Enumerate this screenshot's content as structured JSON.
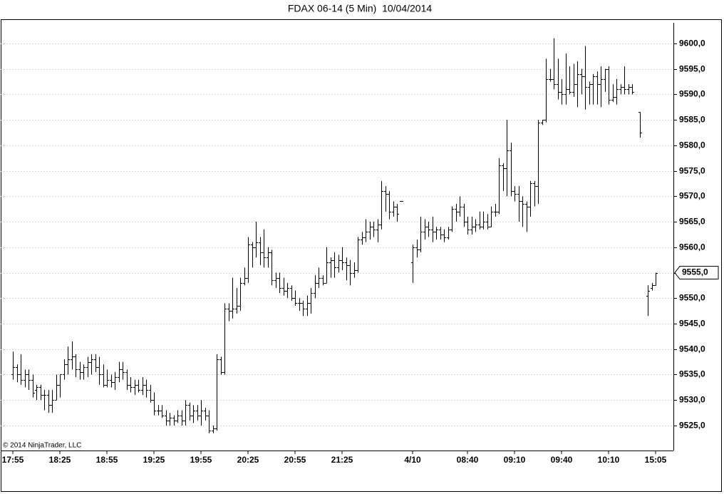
{
  "chart_data": {
    "type": "ohlc",
    "title": "FDAX 06-14 (5 Min)  10/04/2014",
    "annotation": "© 2014 NinjaTrader, LLC",
    "color": "#000000",
    "grid": true,
    "ylim": [
      9520.1,
      9604.6
    ],
    "yticks": [
      {
        "value": 9525,
        "label": "9525,0"
      },
      {
        "value": 9530,
        "label": "9530,0"
      },
      {
        "value": 9535,
        "label": "9535,0"
      },
      {
        "value": 9540,
        "label": "9540,0"
      },
      {
        "value": 9545,
        "label": "9545,0"
      },
      {
        "value": 9550,
        "label": "9550,0"
      },
      {
        "value": 9555,
        "label": "9555,0"
      },
      {
        "value": 9560,
        "label": "9560,0"
      },
      {
        "value": 9565,
        "label": "9565,0"
      },
      {
        "value": 9570,
        "label": "9570,0"
      },
      {
        "value": 9575,
        "label": "9575,0"
      },
      {
        "value": 9580,
        "label": "9580,0"
      },
      {
        "value": 9585,
        "label": "9585,0"
      },
      {
        "value": 9590,
        "label": "9590,0"
      },
      {
        "value": 9595,
        "label": "9595,0"
      },
      {
        "value": 9600,
        "label": "9600,0"
      }
    ],
    "last_price": {
      "value": 9555,
      "label": "9555,0"
    },
    "categories": [
      "17:55",
      null,
      null,
      null,
      null,
      null,
      null,
      null,
      null,
      null,
      null,
      null,
      "18:25",
      null,
      null,
      null,
      null,
      null,
      null,
      null,
      null,
      null,
      null,
      null,
      "18:55",
      null,
      null,
      null,
      null,
      null,
      null,
      null,
      null,
      null,
      null,
      null,
      "19:25",
      null,
      null,
      null,
      null,
      null,
      null,
      null,
      null,
      null,
      null,
      null,
      "19:55",
      null,
      null,
      null,
      null,
      null,
      null,
      null,
      null,
      null,
      null,
      null,
      "20:25",
      null,
      null,
      null,
      null,
      null,
      null,
      null,
      null,
      null,
      null,
      null,
      "20:55",
      null,
      null,
      null,
      null,
      null,
      null,
      null,
      null,
      null,
      null,
      null,
      "21:25",
      null,
      null,
      null,
      null,
      null,
      null,
      null,
      null,
      null,
      null,
      null,
      null,
      null,
      null,
      null,
      null,
      null,
      "4/10",
      null,
      null,
      null,
      null,
      null,
      null,
      null,
      null,
      null,
      null,
      null,
      null,
      null,
      "08:40",
      null,
      null,
      null,
      null,
      null,
      null,
      null,
      null,
      null,
      null,
      null,
      "09:10",
      null,
      null,
      null,
      null,
      null,
      null,
      null,
      null,
      null,
      null,
      null,
      "09:40",
      null,
      null,
      null,
      null,
      null,
      null,
      null,
      null,
      null,
      null,
      null,
      "10:10",
      null,
      null,
      null,
      null,
      null,
      null,
      null,
      null,
      null,
      null,
      null,
      "15:05"
    ],
    "open": [
      9535,
      9536.5,
      9535,
      9534,
      9535,
      9534,
      9532,
      9532.5,
      9531,
      9531,
      9529,
      9530,
      9533,
      9535,
      9537,
      9538,
      9538.5,
      9536,
      9535.5,
      9536.5,
      9537.5,
      9538,
      9536.5,
      9535,
      9533,
      9534,
      9533.5,
      9534.5,
      9536,
      9535.5,
      9533,
      9532.5,
      9533,
      9532,
      9533,
      9532,
      9530,
      9528,
      9528,
      9527,
      9526,
      9526.5,
      9526,
      9527,
      9526,
      9529,
      9527,
      9528,
      9527,
      9528,
      9527,
      9524,
      9524.5,
      9538,
      9535.5,
      9548,
      9547.5,
      9548,
      9548.5,
      9553,
      9554,
      9560.5,
      9560,
      9561,
      9559,
      9558,
      9559,
      9553.5,
      9554,
      9552,
      9551.5,
      9552,
      9550,
      9549,
      9549,
      9548,
      9549,
      9551,
      9553,
      9554,
      9553,
      9557,
      9557.5,
      9556,
      9557.5,
      9557,
      9556.5,
      9555,
      9555.5,
      9561.5,
      9562,
      9563,
      9564,
      9563.5,
      9564.5,
      9571,
      9570.5,
      9567,
      9568,
      9569,
      null,
      null,
      9557,
      9560,
      9559.5,
      9563,
      9564,
      9563.5,
      9563,
      9563.5,
      9562.5,
      9562,
      9563.5,
      9567.5,
      9567,
      9568,
      9565,
      9563.5,
      9564,
      9564.5,
      9564,
      9565,
      9564,
      9567,
      9567,
      9576,
      9575.5,
      9579,
      9571,
      9570.5,
      9569,
      9568.5,
      9568,
      9572.5,
      9572,
      9584.5,
      9585,
      9593,
      9593,
      9592,
      9590.5,
      9590,
      9591,
      9590.5,
      9592,
      9594,
      9593.5,
      9591.5,
      9592,
      9593.5,
      9592,
      9593,
      9595,
      9589,
      9589.5,
      9591,
      9591.5,
      9591,
      9591.5,
      null,
      9586.5,
      null,
      9550.5,
      9552,
      9552.5
    ],
    "high": [
      9539.5,
      9537,
      9539,
      9536,
      9536,
      9535,
      9533,
      9533,
      9532,
      9532,
      9532,
      9535,
      9535,
      9538,
      9540.5,
      9541.5,
      9539,
      9537.5,
      9537,
      9538.5,
      9539,
      9539,
      9538.5,
      9537,
      9536,
      9535,
      9535.5,
      9537.5,
      9537.5,
      9536,
      9534.5,
      9534,
      9534,
      9534.5,
      9534,
      9533,
      9531.5,
      9529,
      9529,
      9528,
      9527.5,
      9527,
      9528,
      9528,
      9530,
      9529.5,
      9529,
      9529,
      9530,
      9528.5,
      9528,
      9525,
      9539,
      9538.5,
      9549,
      9549,
      9554,
      9552,
      9554,
      9556,
      9562,
      9561,
      9565,
      9562,
      9563.5,
      9560,
      9559.5,
      9555,
      9555,
      9554,
      9553,
      9552.5,
      9551.5,
      9550,
      9549.5,
      9550.5,
      9552,
      9554.5,
      9556,
      9554.5,
      9560,
      9558,
      9559,
      9558.5,
      9560,
      9558,
      9557.5,
      9557,
      9562,
      9563,
      9565.5,
      9565,
      9565,
      9565.5,
      9573,
      9572,
      9571,
      9569,
      9568.5,
      9569,
      null,
      null,
      9560.5,
      9561.5,
      9566,
      9565.5,
      9565,
      9566,
      9564,
      9564,
      9563.5,
      9564,
      9568,
      9568.5,
      9570,
      9568.5,
      9566,
      9566,
      9565.5,
      9567,
      9567,
      9566.5,
      9568,
      9568.5,
      9577.5,
      9576.5,
      9585,
      9580.5,
      9572,
      9572,
      9570,
      9569,
      9573,
      9573,
      9585,
      9585,
      9597,
      9595,
      9601,
      9597,
      9593,
      9598,
      9595.5,
      9596,
      9596.5,
      9595,
      9599.5,
      9592.5,
      9594,
      9594.5,
      9595.5,
      9595,
      9595.5,
      9592,
      9593,
      9592,
      9595.5,
      9592,
      9592,
      null,
      9586.5,
      null,
      9552.5,
      9553,
      9555
    ],
    "low": [
      9534,
      9533.5,
      9533,
      9532.5,
      9532,
      9530.5,
      9530,
      9530,
      9528,
      9527.5,
      9527.5,
      9530,
      9530.5,
      9534,
      9535,
      9536,
      9534.5,
      9534,
      9534,
      9534.5,
      9535,
      9535.5,
      9533,
      9532.5,
      9532.5,
      9532.5,
      9532,
      9533.5,
      9534,
      9532,
      9531.5,
      9531,
      9531.5,
      9531,
      9530.5,
      9529.5,
      9527,
      9527,
      9526.5,
      9525,
      9525,
      9525,
      9525.5,
      9525,
      9525,
      9526,
      9525.5,
      9526,
      9525,
      9526,
      9523.5,
      9523.5,
      9524,
      9535,
      9535,
      9545.5,
      9546,
      9547,
      9547.5,
      9552.5,
      9553,
      9556,
      9558,
      9556.5,
      9556,
      9556,
      9552.5,
      9552,
      9551,
      9550.5,
      9550,
      9549.5,
      9548.5,
      9547.5,
      9546.5,
      9546.5,
      9547,
      9550,
      9552,
      9552.5,
      9553,
      9554,
      9554,
      9555,
      9555.5,
      9553.5,
      9552.5,
      9554,
      9555,
      9560.5,
      9561,
      9561.5,
      9562,
      9561,
      9563.5,
      9567,
      9565.5,
      9566,
      9565,
      9569,
      null,
      null,
      9553,
      9558,
      9559,
      9561.5,
      9562,
      9561,
      9561.5,
      9561.5,
      9561,
      9561.5,
      9563,
      9565,
      9566,
      9564,
      9562.5,
      9562.5,
      9563,
      9563.5,
      9563.5,
      9563.5,
      9564,
      9566,
      9566.5,
      9571,
      9570,
      9570,
      9569,
      9565,
      9564,
      9563,
      9566,
      9568,
      9568.5,
      9584,
      9584.5,
      9592.5,
      9591,
      9589,
      9588,
      9588,
      9590,
      9589.5,
      9587.5,
      9590,
      9587,
      9588,
      9588,
      9588,
      9587.5,
      9590.5,
      9588,
      9588.5,
      9588,
      9590,
      9590,
      9590,
      9590,
      null,
      9581.5,
      null,
      9546.5,
      9551.5,
      9552.5
    ],
    "close": [
      9536.5,
      9535,
      9534,
      9535,
      9534,
      9531.5,
      9532.5,
      9531,
      9531,
      9529,
      9530,
      9533,
      9535,
      9537,
      9538,
      9538.5,
      9536,
      9535.5,
      9536.5,
      9537.5,
      9538,
      9536.5,
      9535,
      9533,
      9534,
      9533.5,
      9534.5,
      9536,
      9535.5,
      9533,
      9532.5,
      9533,
      9532,
      9533,
      9532,
      9530,
      9528,
      9528,
      9527,
      9526,
      9526.5,
      9526,
      9527,
      9526,
      9529,
      9527,
      9528,
      9527,
      9528,
      9527,
      9524,
      9524.5,
      9538,
      9535.5,
      9548,
      9547.5,
      9548,
      9548.5,
      9553,
      9554,
      9560.5,
      9560,
      9561,
      9559,
      9558,
      9559,
      9553.5,
      9554,
      9552,
      9551.5,
      9552,
      9550,
      9549,
      9549,
      9548,
      9549,
      9551,
      9553,
      9554,
      9553,
      9557,
      9557.5,
      9556,
      9557.5,
      9557,
      9556.5,
      9555,
      9555.5,
      9561.5,
      9562,
      9563,
      9564,
      9563.5,
      9564.5,
      9571,
      9570.5,
      9567,
      9568,
      9566.5,
      9569,
      null,
      null,
      9560,
      9559.5,
      9563,
      9564,
      9563.5,
      9563,
      9563.5,
      9562.5,
      9562,
      9563.5,
      9567.5,
      9567,
      9568,
      9565,
      9563.5,
      9564,
      9564.5,
      9564,
      9565,
      9564,
      9567,
      9567,
      9576,
      9575.5,
      9579,
      9571,
      9570.5,
      9569,
      9568.5,
      9568,
      9572.5,
      9572,
      9584.5,
      9585,
      9593,
      9593,
      9592,
      9590.5,
      9590,
      9591,
      9590.5,
      9592,
      9594,
      9593.5,
      9591.5,
      9592,
      9593.5,
      9592,
      9593,
      9595,
      9589,
      9589.5,
      9591,
      9591.5,
      9591,
      9591.5,
      9590.5,
      null,
      9582.5,
      null,
      9551.5,
      9552.5,
      9555
    ]
  }
}
